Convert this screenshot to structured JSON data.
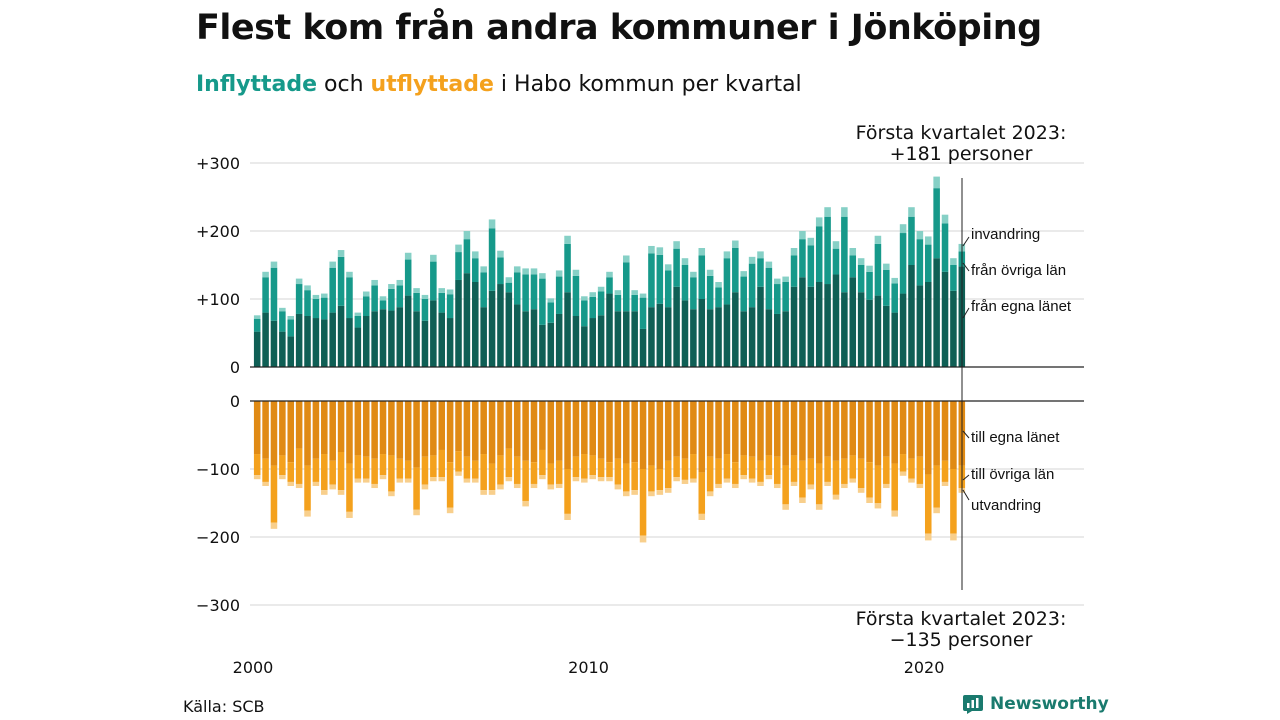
{
  "header": {
    "title": "Flest kom från andra kommuner i Jönköping",
    "subtitle_in": "Inflyttade",
    "subtitle_mid": " och ",
    "subtitle_out": "utflyttade",
    "subtitle_rest": " i Habo kommun per kvartal"
  },
  "annotation_top": {
    "line1": "Första kvartalet 2023:",
    "line2": "+181 personer"
  },
  "annotation_bottom": {
    "line1": "Första kvartalet 2023:",
    "line2": "−135 personer"
  },
  "footer": {
    "source": "Källa: SCB",
    "brand": "Newsworthy"
  },
  "colors": {
    "in_dark": "#0f5f55",
    "in_mid": "#16998a",
    "in_light": "#86d0c6",
    "out_dark": "#e08a14",
    "out_mid": "#f4a11d",
    "out_light": "#f8cf8c",
    "grid": "#dddddd",
    "axis": "#222222"
  },
  "chart_data": {
    "type": "bar",
    "stacked": true,
    "x_start": "2000 Q1",
    "x_end": "2023 Q1",
    "x_tick_labels": [
      "2000",
      "2010",
      "2020"
    ],
    "y_top_ticks": [
      "+300",
      "+200",
      "+100",
      "0"
    ],
    "y_bottom_ticks": [
      "0",
      "−100",
      "−200",
      "−300"
    ],
    "ylim_top": [
      0,
      300
    ],
    "ylim_bottom": [
      -300,
      0
    ],
    "grid": true,
    "series_labels": {
      "in_egna": "från egna länet",
      "in_ovriga": "från övriga län",
      "in_invandring": "invandring",
      "out_egna": "till egna länet",
      "out_ovriga": "till övriga län",
      "out_utvandring": "utvandring"
    },
    "inflyttade_total": [
      76,
      140,
      155,
      87,
      75,
      130,
      120,
      106,
      108,
      155,
      172,
      140,
      80,
      111,
      128,
      104,
      122,
      128,
      168,
      116,
      106,
      165,
      116,
      114,
      180,
      200,
      170,
      148,
      217,
      171,
      132,
      148,
      145,
      145,
      138,
      101,
      142,
      193,
      143,
      104,
      110,
      118,
      140,
      113,
      164,
      113,
      108,
      178,
      176,
      151,
      185,
      160,
      140,
      175,
      143,
      125,
      170,
      186,
      141,
      162,
      170,
      155,
      130,
      133,
      175,
      200,
      190,
      220,
      235,
      185,
      235,
      175,
      160,
      149,
      193,
      152,
      131,
      210,
      235,
      200,
      192,
      280,
      224,
      160,
      181
    ],
    "inflyttade_egna": [
      52,
      80,
      68,
      52,
      45,
      78,
      75,
      72,
      70,
      80,
      90,
      72,
      58,
      75,
      82,
      85,
      83,
      88,
      105,
      82,
      68,
      98,
      80,
      72,
      128,
      138,
      125,
      88,
      112,
      122,
      110,
      92,
      82,
      85,
      62,
      65,
      78,
      110,
      75,
      60,
      72,
      76,
      108,
      82,
      82,
      82,
      56,
      88,
      93,
      88,
      118,
      98,
      85,
      100,
      85,
      88,
      92,
      110,
      82,
      88,
      118,
      85,
      78,
      82,
      118,
      132,
      118,
      125,
      122,
      136,
      110,
      132,
      110,
      99,
      105,
      90,
      80,
      108,
      150,
      120,
      125,
      160,
      140,
      112,
      148
    ],
    "utflyttade_total": [
      -115,
      -125,
      -188,
      -115,
      -125,
      -128,
      -170,
      -125,
      -138,
      -130,
      -138,
      -172,
      -120,
      -120,
      -128,
      -115,
      -140,
      -120,
      -120,
      -168,
      -130,
      -118,
      -118,
      -165,
      -110,
      -120,
      -120,
      -138,
      -138,
      -130,
      -118,
      -128,
      -155,
      -128,
      -115,
      -130,
      -128,
      -175,
      -118,
      -120,
      -115,
      -118,
      -118,
      -130,
      -140,
      -138,
      -208,
      -140,
      -138,
      -135,
      -118,
      -122,
      -120,
      -175,
      -140,
      -128,
      -120,
      -128,
      -115,
      -120,
      -125,
      -115,
      -128,
      -160,
      -125,
      -150,
      -130,
      -160,
      -125,
      -145,
      -128,
      -120,
      -135,
      -150,
      -158,
      -128,
      -170,
      -110,
      -120,
      -128,
      -205,
      -165,
      -125,
      -205,
      -135
    ],
    "utflyttade_egna": [
      -78,
      -85,
      -95,
      -80,
      -90,
      -70,
      -95,
      -85,
      -78,
      -88,
      -75,
      -92,
      -80,
      -82,
      -85,
      -78,
      -80,
      -85,
      -88,
      -98,
      -82,
      -80,
      -72,
      -90,
      -74,
      -82,
      -88,
      -78,
      -92,
      -80,
      -70,
      -82,
      -88,
      -90,
      -72,
      -92,
      -88,
      -100,
      -82,
      -78,
      -80,
      -85,
      -90,
      -85,
      -92,
      -90,
      -100,
      -95,
      -100,
      -88,
      -82,
      -85,
      -78,
      -105,
      -82,
      -85,
      -78,
      -90,
      -80,
      -82,
      -88,
      -80,
      -82,
      -95,
      -80,
      -88,
      -85,
      -92,
      -82,
      -88,
      -85,
      -80,
      -85,
      -90,
      -95,
      -82,
      -92,
      -78,
      -85,
      -82,
      -108,
      -95,
      -88,
      -100,
      -95
    ]
  }
}
